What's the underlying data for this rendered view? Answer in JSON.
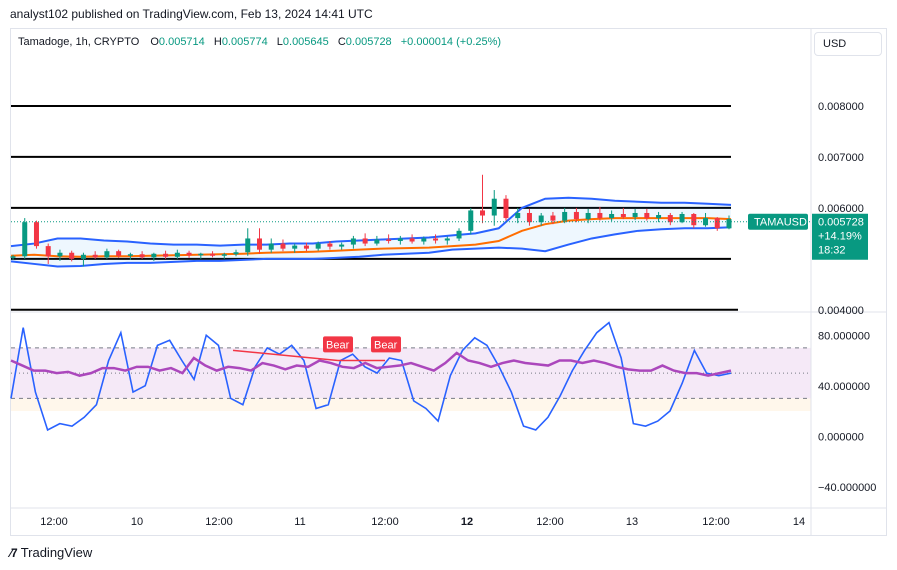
{
  "header": {
    "publisher": "analyst102 published on TradingView.com, Feb 13, 2024 14:41 UTC"
  },
  "legend": {
    "symbol": "Tamadoge, 1h, CRYPTO",
    "open_label": "O",
    "open": "0.005714",
    "high_label": "H",
    "high": "0.005774",
    "low_label": "L",
    "low": "0.005645",
    "close_label": "C",
    "close": "0.005728",
    "change": "+0.000014 (+0.25%)"
  },
  "currency": "USD",
  "price_tag": {
    "ticker": "TAMAUSD",
    "price": "0.005728",
    "change": "+14.19%",
    "countdown": "18:32"
  },
  "footer": {
    "brand": "TradingView"
  },
  "colors": {
    "up": "#089981",
    "down": "#f23645",
    "band": "#2962ff",
    "basis": "#ff6d00",
    "rsi": "#ab47bc",
    "stoch": "#2962ff",
    "bear": "#f23645"
  },
  "chart_data": [
    {
      "type": "candlestick",
      "title": "Tamadoge, 1h, CRYPTO",
      "x_ticks": [
        "12:00",
        "10",
        "12:00",
        "11",
        "12:00",
        "12",
        "12:00",
        "13",
        "12:00",
        "14"
      ],
      "y_ticks": [
        "0.008000",
        "0.007000",
        "0.006000",
        "0.004000"
      ],
      "ylim": [
        0.0038,
        0.009
      ],
      "horizontal_levels": [
        0.008,
        0.007,
        0.006,
        0.005,
        0.004
      ],
      "indicators": [
        "Bollinger Bands",
        "Moving average (basis)"
      ],
      "last_price": 0.005728
    },
    {
      "type": "line",
      "title": "",
      "y_ticks": [
        "80.000000",
        "40.000000",
        "0.000000",
        "−40.000000"
      ],
      "ylim": [
        -60,
        100
      ],
      "bands": [
        70,
        30
      ],
      "series": [
        {
          "values": [
            60,
            56,
            52,
            52,
            50,
            51,
            48,
            50,
            54,
            54,
            52,
            55,
            55,
            52,
            54,
            50,
            62,
            56,
            52,
            55,
            54,
            52,
            58,
            56,
            53,
            56,
            55,
            60,
            58,
            55,
            54,
            58,
            54,
            55,
            56,
            58,
            55,
            52,
            58,
            66,
            60,
            58,
            55,
            58,
            60,
            58,
            57,
            56,
            60,
            60,
            58,
            60,
            58,
            55,
            53,
            52,
            52,
            56,
            52,
            50,
            50,
            48,
            50,
            52
          ]
        },
        {
          "values": [
            30,
            86,
            35,
            5,
            10,
            8,
            15,
            25,
            60,
            82,
            35,
            40,
            72,
            76,
            60,
            45,
            80,
            72,
            30,
            25,
            55,
            70,
            65,
            72,
            60,
            22,
            25,
            60,
            65,
            55,
            50,
            62,
            60,
            28,
            22,
            12,
            48,
            68,
            78,
            72,
            55,
            35,
            8,
            5,
            15,
            32,
            52,
            68,
            82,
            90,
            62,
            10,
            8,
            12,
            20,
            42,
            68,
            50,
            48,
            50
          ]
        }
      ],
      "annotations": [
        "Bear",
        "Bear"
      ]
    }
  ],
  "candles_ohlc": [
    [
      0.00502,
      0.00508,
      0.00498,
      0.00505
    ],
    [
      0.00505,
      0.0058,
      0.005,
      0.00572
    ],
    [
      0.00572,
      0.00575,
      0.0052,
      0.00525
    ],
    [
      0.00525,
      0.0053,
      0.0049,
      0.00505
    ],
    [
      0.00505,
      0.00518,
      0.00496,
      0.00512
    ],
    [
      0.00512,
      0.00516,
      0.00495,
      0.005
    ],
    [
      0.005,
      0.00512,
      0.00485,
      0.00508
    ],
    [
      0.00508,
      0.00515,
      0.005,
      0.00503
    ],
    [
      0.00503,
      0.0052,
      0.005,
      0.00515
    ],
    [
      0.00515,
      0.00518,
      0.00502,
      0.00506
    ],
    [
      0.00506,
      0.00512,
      0.00498,
      0.00509
    ],
    [
      0.00509,
      0.00515,
      0.005,
      0.00503
    ],
    [
      0.00503,
      0.00512,
      0.00496,
      0.0051
    ],
    [
      0.0051,
      0.00516,
      0.005,
      0.00504
    ],
    [
      0.00504,
      0.00518,
      0.005,
      0.00512
    ],
    [
      0.00512,
      0.00516,
      0.00502,
      0.00507
    ],
    [
      0.00507,
      0.00512,
      0.005,
      0.0051
    ],
    [
      0.0051,
      0.00515,
      0.00503,
      0.00506
    ],
    [
      0.00506,
      0.00512,
      0.005,
      0.00509
    ],
    [
      0.00509,
      0.00518,
      0.00505,
      0.00513
    ],
    [
      0.00513,
      0.0056,
      0.00506,
      0.0054
    ],
    [
      0.0054,
      0.0056,
      0.0051,
      0.00518
    ],
    [
      0.00518,
      0.0054,
      0.00512,
      0.0053
    ],
    [
      0.0053,
      0.00538,
      0.00515,
      0.0052
    ],
    [
      0.0052,
      0.0053,
      0.00512,
      0.00526
    ],
    [
      0.00526,
      0.00532,
      0.00515,
      0.0052
    ],
    [
      0.0052,
      0.00534,
      0.00516,
      0.0053
    ],
    [
      0.0053,
      0.00535,
      0.00518,
      0.00524
    ],
    [
      0.00524,
      0.00532,
      0.00518,
      0.00528
    ],
    [
      0.00528,
      0.00545,
      0.0052,
      0.0054
    ],
    [
      0.0054,
      0.0055,
      0.00525,
      0.0053
    ],
    [
      0.0053,
      0.00545,
      0.00526,
      0.00538
    ],
    [
      0.00538,
      0.00548,
      0.0053,
      0.00535
    ],
    [
      0.00535,
      0.00545,
      0.00528,
      0.0054
    ],
    [
      0.0054,
      0.00548,
      0.0053,
      0.00534
    ],
    [
      0.00534,
      0.00544,
      0.00528,
      0.0054
    ],
    [
      0.0054,
      0.00548,
      0.0053,
      0.00536
    ],
    [
      0.00536,
      0.00544,
      0.00528,
      0.0054
    ],
    [
      0.0054,
      0.0056,
      0.00535,
      0.00555
    ],
    [
      0.00555,
      0.006,
      0.00548,
      0.00595
    ],
    [
      0.00595,
      0.00665,
      0.0057,
      0.00585
    ],
    [
      0.00585,
      0.00635,
      0.00565,
      0.00618
    ],
    [
      0.00618,
      0.00625,
      0.00575,
      0.0058
    ],
    [
      0.0058,
      0.006,
      0.0057,
      0.0059
    ],
    [
      0.0059,
      0.00598,
      0.00565,
      0.00572
    ],
    [
      0.00572,
      0.0059,
      0.00565,
      0.00585
    ],
    [
      0.00585,
      0.00592,
      0.00568,
      0.00575
    ],
    [
      0.00575,
      0.006,
      0.0057,
      0.00592
    ],
    [
      0.00592,
      0.006,
      0.00572,
      0.00578
    ],
    [
      0.00578,
      0.00598,
      0.0057,
      0.0059
    ],
    [
      0.0059,
      0.00602,
      0.00575,
      0.0058
    ],
    [
      0.0058,
      0.00595,
      0.00574,
      0.00588
    ],
    [
      0.00588,
      0.006,
      0.00578,
      0.00582
    ],
    [
      0.00582,
      0.00598,
      0.00576,
      0.0059
    ],
    [
      0.0059,
      0.00598,
      0.00575,
      0.0058
    ],
    [
      0.0058,
      0.00592,
      0.00572,
      0.00586
    ],
    [
      0.00586,
      0.0059,
      0.00566,
      0.00572
    ],
    [
      0.00572,
      0.00592,
      0.0057,
      0.00588
    ],
    [
      0.00588,
      0.0059,
      0.0056,
      0.00566
    ],
    [
      0.00566,
      0.0059,
      0.00563,
      0.0058
    ],
    [
      0.0058,
      0.00582,
      0.00555,
      0.0056
    ],
    [
      0.0056,
      0.00585,
      0.00558,
      0.00578
    ]
  ],
  "bb_upper": [
    0.00525,
    0.0053,
    0.0054,
    0.0054,
    0.00536,
    0.00534,
    0.0053,
    0.00528,
    0.00528,
    0.00526,
    0.00528,
    0.00528,
    0.0053,
    0.0053,
    0.00534,
    0.00536,
    0.00538,
    0.0054,
    0.00542,
    0.00546,
    0.0055,
    0.0056,
    0.006,
    0.00618,
    0.0062,
    0.00618,
    0.00614,
    0.00612,
    0.0061,
    0.0061,
    0.00608,
    0.00606
  ],
  "bb_lower": [
    0.00495,
    0.0049,
    0.00485,
    0.00486,
    0.0049,
    0.00492,
    0.00492,
    0.00494,
    0.00496,
    0.00496,
    0.00498,
    0.005,
    0.005,
    0.005,
    0.00502,
    0.00504,
    0.00508,
    0.0051,
    0.00512,
    0.00518,
    0.0052,
    0.00522,
    0.0052,
    0.00515,
    0.00528,
    0.0054,
    0.00548,
    0.00555,
    0.00558,
    0.0056,
    0.0056,
    0.00562
  ],
  "bb_basis": [
    0.00506,
    0.00508,
    0.00505,
    0.00504,
    0.00505,
    0.00505,
    0.00506,
    0.00507,
    0.00508,
    0.00509,
    0.0051,
    0.00512,
    0.00513,
    0.00514,
    0.00516,
    0.00518,
    0.0052,
    0.00521,
    0.00522,
    0.00525,
    0.00528,
    0.00535,
    0.00555,
    0.00568,
    0.00575,
    0.00578,
    0.0058,
    0.0058,
    0.0058,
    0.0058,
    0.0058,
    0.00578
  ]
}
